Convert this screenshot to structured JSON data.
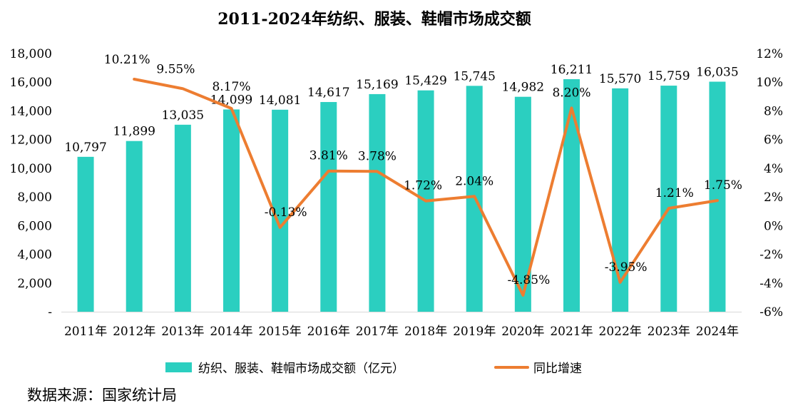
{
  "chart_data": {
    "type": "bar",
    "title": "2011-2024年纺织、服装、鞋帽市场成交额",
    "categories": [
      "2011年",
      "2012年",
      "2013年",
      "2014年",
      "2015年",
      "2016年",
      "2017年",
      "2018年",
      "2019年",
      "2020年",
      "2021年",
      "2022年",
      "2023年",
      "2024年"
    ],
    "series": [
      {
        "name": "纺织、服装、鞋帽市场成交额（亿元）",
        "type": "bar",
        "axis": "left",
        "values": [
          10797,
          11899,
          13035,
          14099,
          14081,
          14617,
          15169,
          15429,
          15745,
          14982,
          16211,
          15570,
          15759,
          16035
        ],
        "labels": [
          "10,797",
          "11,899",
          "13,035",
          "14,099",
          "14,081",
          "14,617",
          "15,169",
          "15,429",
          "15,745",
          "14,982",
          "16,211",
          "15,570",
          "15,759",
          "16,035"
        ],
        "color": "#2bcfc0"
      },
      {
        "name": "同比增速",
        "type": "line",
        "axis": "right",
        "values": [
          null,
          10.21,
          9.55,
          8.17,
          -0.13,
          3.81,
          3.78,
          1.72,
          2.04,
          -4.85,
          8.2,
          -3.95,
          1.21,
          1.75
        ],
        "labels": [
          "",
          "10.21%",
          "9.55%",
          "8.17%",
          "-0.13%",
          "3.81%",
          "3.78%",
          "1.72%",
          "2.04%",
          "-4.85%",
          "8.20%",
          "-3.95%",
          "1.21%",
          "1.75%"
        ],
        "color": "#ed7d31"
      }
    ],
    "y_left": {
      "ylim": [
        0,
        18000
      ],
      "ticks": [
        "-",
        "2,000",
        "4,000",
        "6,000",
        "8,000",
        "10,000",
        "12,000",
        "14,000",
        "16,000",
        "18,000"
      ]
    },
    "y_right": {
      "ylim": [
        -6,
        12
      ],
      "ticks": [
        "-6%",
        "-4%",
        "-2%",
        "0%",
        "2%",
        "4%",
        "6%",
        "8%",
        "10%",
        "12%"
      ]
    },
    "grid": false,
    "legend_position": "bottom"
  },
  "source_note": "数据来源：国家统计局"
}
